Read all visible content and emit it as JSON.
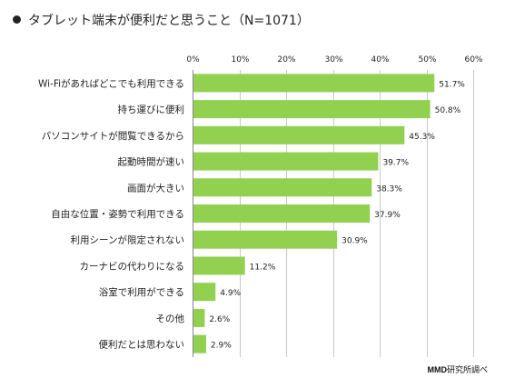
{
  "title": "タブレット端末が便利だと思うこと（N=1071）",
  "credit_prefix": "MMD",
  "credit_suffix": "研究所調べ",
  "chart_data": {
    "type": "bar",
    "orientation": "horizontal",
    "categories": [
      "Wi-Fiがあればどこでも利用できる",
      "持ち運びに便利",
      "パソコンサイトが閲覧できるから",
      "起動時間が速い",
      "画面が大きい",
      "自由な位置・姿勢で利用できる",
      "利用シーンが限定されない",
      "カーナビの代わりになる",
      "浴室で利用ができる",
      "その他",
      "便利だとは思わない"
    ],
    "values": [
      51.7,
      50.8,
      45.3,
      39.7,
      38.3,
      37.9,
      30.9,
      11.2,
      4.9,
      2.6,
      2.9
    ],
    "value_labels": [
      "51.7%",
      "50.8%",
      "45.3%",
      "39.7%",
      "38.3%",
      "37.9%",
      "30.9%",
      "11.2%",
      "4.9%",
      "2.6%",
      "2.9%"
    ],
    "xlim": [
      0,
      60
    ],
    "ticks": [
      0,
      10,
      20,
      30,
      40,
      50,
      60
    ],
    "tick_labels": [
      "0%",
      "10%",
      "20%",
      "30%",
      "40%",
      "50%",
      "60%"
    ],
    "grid": true,
    "bar_color": "#92d050"
  }
}
